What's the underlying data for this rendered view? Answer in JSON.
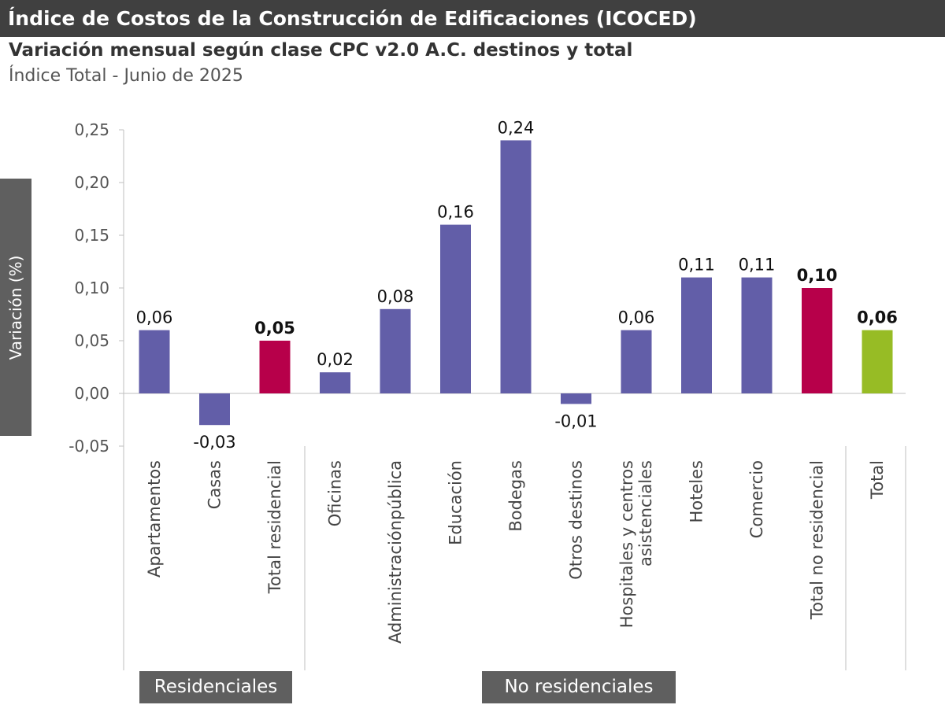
{
  "header": {
    "title": "Índice de Costos de la Construcción de Edificaciones (ICOCED)",
    "subtitle": "Variación mensual según clase CPC v2.0 A.C. destinos y total",
    "subsubtitle": "Índice Total - Junio de 2025"
  },
  "colors": {
    "base": "#625ea8",
    "subtotal": "#b7004a",
    "total": "#97bc25",
    "axis": "#bfbfbf",
    "text": "#333333"
  },
  "groups": [
    "Residenciales",
    "No residenciales"
  ],
  "chart_data": {
    "type": "bar",
    "title": "Variación mensual según clase CPC v2.0 A.C. destinos y total",
    "xlabel": "",
    "ylabel": "Variación (%)",
    "ylim": [
      -0.05,
      0.25
    ],
    "yticks": [
      -0.05,
      0.0,
      0.05,
      0.1,
      0.15,
      0.2,
      0.25
    ],
    "ytick_labels": [
      "-0,05",
      "0,00",
      "0,05",
      "0,10",
      "0,15",
      "0,20",
      "0,25"
    ],
    "grid": false,
    "categories": [
      [
        "Apartamentos"
      ],
      [
        "Casas"
      ],
      [
        "Total residencial"
      ],
      [
        "Oficinas"
      ],
      [
        "Administraciónpública"
      ],
      [
        "Educación"
      ],
      [
        "Bodegas"
      ],
      [
        "Otros destinos"
      ],
      [
        "Hospitales y centros",
        "asistenciales"
      ],
      [
        "Hoteles"
      ],
      [
        "Comercio"
      ],
      [
        "Total no residencial"
      ],
      [
        "Total"
      ]
    ],
    "values": [
      0.06,
      -0.03,
      0.05,
      0.02,
      0.08,
      0.16,
      0.24,
      -0.01,
      0.06,
      0.11,
      0.11,
      0.1,
      0.06
    ],
    "value_labels": [
      "0,06",
      "-0,03",
      "0,05",
      "0,02",
      "0,08",
      "0,16",
      "0,24",
      "-0,01",
      "0,06",
      "0,11",
      "0,11",
      "0,10",
      "0,06"
    ],
    "kinds": [
      "base",
      "base",
      "subtotal",
      "base",
      "base",
      "base",
      "base",
      "base",
      "base",
      "base",
      "base",
      "subtotal",
      "total"
    ]
  }
}
